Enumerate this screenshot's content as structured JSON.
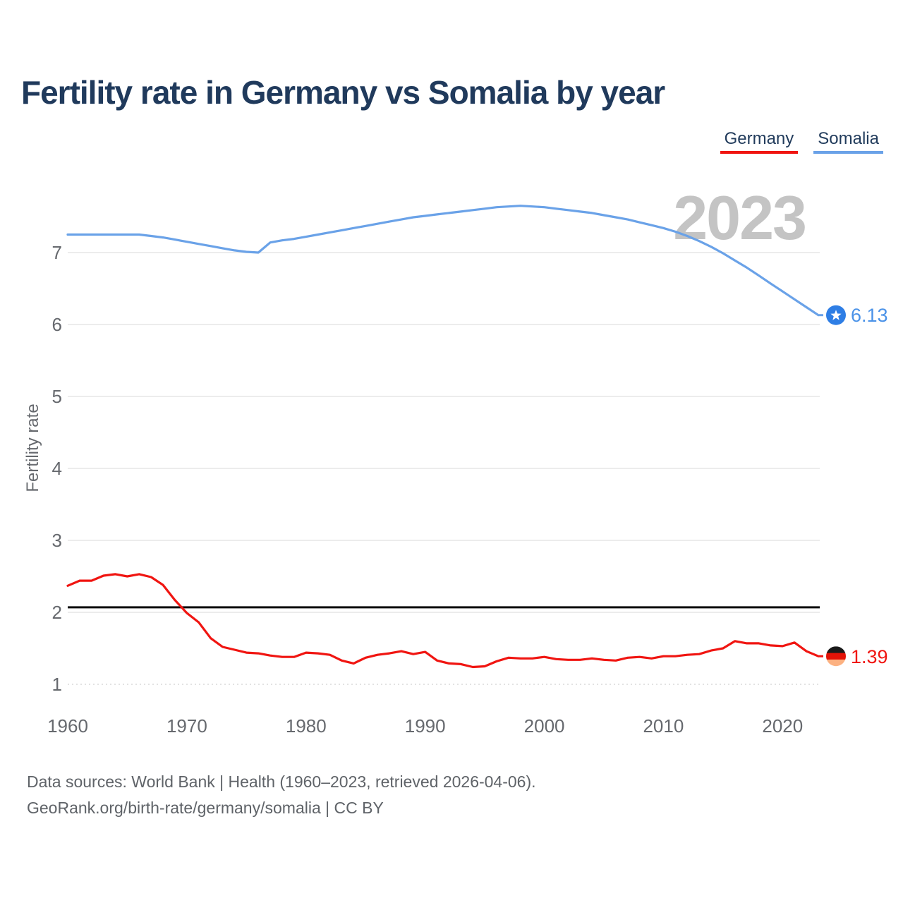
{
  "title": "Fertility rate in Germany vs Somalia by year",
  "watermark": "2023",
  "legend": [
    {
      "label": "Germany",
      "color": "#f01511"
    },
    {
      "label": "Somalia",
      "color": "#6aa2e8"
    }
  ],
  "y_axis": {
    "label": "Fertility rate",
    "ticks": [
      1,
      2,
      3,
      4,
      5,
      6,
      7
    ]
  },
  "x_axis": {
    "ticks": [
      1960,
      1970,
      1980,
      1990,
      2000,
      2010,
      2020
    ]
  },
  "reference_line": {
    "value": 2.07,
    "color": "#0b0b0b"
  },
  "end_labels": {
    "somalia": "6.13",
    "germany": "1.39"
  },
  "end_markers": {
    "somalia": {
      "shape": "somalia-flag-circle",
      "color": "#2e7ee5",
      "star_color": "#ffffff"
    },
    "germany": {
      "shape": "germany-flag-circle",
      "flag_colors": [
        "#1a1a1a",
        "#e31307",
        "#fcb181"
      ]
    }
  },
  "footer": {
    "line1": "Data sources: World Bank | Health (1960–2023, retrieved 2026-04-06).",
    "line2": "GeoRank.org/birth-rate/germany/somalia | CC BY"
  },
  "chart_data": {
    "type": "line",
    "title": "Fertility rate in Germany vs Somalia by year",
    "xlabel": "",
    "ylabel": "Fertility rate",
    "xlim": [
      1960,
      2023
    ],
    "ylim": [
      1,
      7.8
    ],
    "grid": "horizontal",
    "legend_position": "top-right",
    "x_start": 1960,
    "series": [
      {
        "name": "Somalia",
        "color": "#6aa2e8",
        "end_value": 6.13,
        "values": [
          7.25,
          7.25,
          7.25,
          7.25,
          7.25,
          7.25,
          7.25,
          7.23,
          7.21,
          7.18,
          7.15,
          7.12,
          7.09,
          7.06,
          7.03,
          7.01,
          7.0,
          7.14,
          7.17,
          7.19,
          7.22,
          7.25,
          7.28,
          7.31,
          7.34,
          7.37,
          7.4,
          7.43,
          7.46,
          7.49,
          7.51,
          7.53,
          7.55,
          7.57,
          7.59,
          7.61,
          7.63,
          7.64,
          7.65,
          7.64,
          7.63,
          7.61,
          7.59,
          7.57,
          7.55,
          7.52,
          7.49,
          7.46,
          7.42,
          7.38,
          7.34,
          7.29,
          7.23,
          7.16,
          7.08,
          6.99,
          6.89,
          6.79,
          6.68,
          6.57,
          6.46,
          6.35,
          6.24,
          6.13
        ]
      },
      {
        "name": "Germany",
        "color": "#f01511",
        "end_value": 1.39,
        "values": [
          2.37,
          2.44,
          2.44,
          2.51,
          2.53,
          2.5,
          2.53,
          2.49,
          2.38,
          2.17,
          1.99,
          1.86,
          1.64,
          1.52,
          1.48,
          1.44,
          1.43,
          1.4,
          1.38,
          1.38,
          1.44,
          1.43,
          1.41,
          1.33,
          1.29,
          1.37,
          1.41,
          1.43,
          1.46,
          1.42,
          1.45,
          1.33,
          1.29,
          1.28,
          1.24,
          1.25,
          1.32,
          1.37,
          1.36,
          1.36,
          1.38,
          1.35,
          1.34,
          1.34,
          1.36,
          1.34,
          1.33,
          1.37,
          1.38,
          1.36,
          1.39,
          1.39,
          1.41,
          1.42,
          1.47,
          1.5,
          1.6,
          1.57,
          1.57,
          1.54,
          1.53,
          1.58,
          1.46,
          1.39
        ]
      }
    ]
  }
}
